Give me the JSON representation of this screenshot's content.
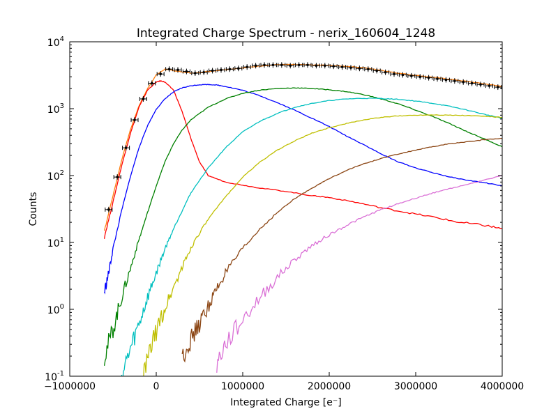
{
  "chart_data": {
    "type": "line",
    "title": "Integrated Charge Spectrum - nerix_160604_1248",
    "xlabel": "Integrated Charge [e⁻]",
    "ylabel": "Counts",
    "xlim": [
      -1000000,
      4000000
    ],
    "ylim": [
      0.1,
      10000
    ],
    "yscale": "log",
    "grid": false,
    "x_ticks": [
      {
        "value": -1000000,
        "label": "−1000000"
      },
      {
        "value": 0,
        "label": "0"
      },
      {
        "value": 1000000,
        "label": "1000000"
      },
      {
        "value": 2000000,
        "label": "2000000"
      },
      {
        "value": 3000000,
        "label": "3000000"
      },
      {
        "value": 4000000,
        "label": "4000000"
      }
    ],
    "y_ticks": [
      {
        "value": 0.1,
        "base": "10",
        "exp": "-1"
      },
      {
        "value": 1,
        "base": "10",
        "exp": "0"
      },
      {
        "value": 10,
        "base": "10",
        "exp": "1"
      },
      {
        "value": 100,
        "base": "10",
        "exp": "2"
      },
      {
        "value": 1000,
        "base": "10",
        "exp": "3"
      },
      {
        "value": 10000,
        "base": "10",
        "exp": "4"
      }
    ],
    "data_points": {
      "color": "#000000",
      "x": [
        -550000,
        -450000,
        -350000,
        -250000,
        -150000,
        -50000,
        50000,
        150000,
        250000,
        350000,
        450000,
        550000,
        650000,
        750000,
        850000,
        950000,
        1050000,
        1150000,
        1250000,
        1350000,
        1450000,
        1550000,
        1650000,
        1750000,
        1850000,
        1950000,
        2050000,
        2150000,
        2250000,
        2350000,
        2450000,
        2550000,
        2650000,
        2750000,
        2850000,
        2950000,
        3050000,
        3150000,
        3250000,
        3350000,
        3450000,
        3550000,
        3650000,
        3750000,
        3850000,
        3950000
      ],
      "y": [
        31,
        95,
        260,
        680,
        1400,
        2400,
        3300,
        3900,
        3800,
        3600,
        3400,
        3500,
        3700,
        3800,
        3900,
        4000,
        4200,
        4400,
        4500,
        4500,
        4500,
        4400,
        4500,
        4500,
        4400,
        4400,
        4300,
        4200,
        4100,
        4000,
        3900,
        3700,
        3500,
        3300,
        3200,
        3100,
        3000,
        2900,
        2800,
        2700,
        2600,
        2500,
        2400,
        2300,
        2200,
        2100
      ]
    },
    "series": [
      {
        "color": "#ff7f0e",
        "x": [
          -600000,
          -500000,
          -400000,
          -300000,
          -200000,
          -100000,
          0,
          100000,
          200000,
          300000,
          400000,
          500000,
          600000,
          800000,
          1000000,
          1200000,
          1400000,
          1600000,
          1800000,
          2000000,
          2200000,
          2400000,
          2600000,
          2800000,
          3000000,
          3200000,
          3400000,
          3600000,
          3800000,
          4000000
        ],
        "y": [
          15,
          50,
          170,
          480,
          1100,
          2000,
          3200,
          3900,
          3700,
          3550,
          3400,
          3450,
          3600,
          3850,
          4050,
          4350,
          4550,
          4550,
          4500,
          4450,
          4300,
          4100,
          3750,
          3400,
          3150,
          2950,
          2750,
          2550,
          2350,
          2150
        ]
      },
      {
        "color": "#ff0000",
        "x": [
          -600000,
          -500000,
          -400000,
          -300000,
          -200000,
          -100000,
          0,
          50000,
          100000,
          200000,
          300000,
          400000,
          500000,
          600000,
          800000,
          1000000,
          1200000,
          1500000,
          1800000,
          2000000,
          2300000,
          2600000,
          2900000,
          3200000,
          3500000,
          3800000,
          4000000
        ],
        "y": [
          12,
          40,
          140,
          420,
          1050,
          1900,
          2500,
          2600,
          2500,
          1900,
          900,
          360,
          160,
          100,
          80,
          72,
          65,
          58,
          50,
          47,
          40,
          33,
          28,
          24,
          20,
          18,
          16
        ]
      },
      {
        "color": "#0000ff",
        "x": [
          -600000,
          -550000,
          -500000,
          -400000,
          -300000,
          -200000,
          -100000,
          0,
          100000,
          200000,
          300000,
          400000,
          500000,
          600000,
          700000,
          800000,
          1000000,
          1200000,
          1400000,
          1600000,
          1800000,
          2000000,
          2200000,
          2400000,
          2600000,
          2800000,
          3000000,
          3200000,
          3400000,
          3600000,
          3800000,
          4000000
        ],
        "y": [
          1.8,
          3.5,
          8,
          30,
          95,
          260,
          560,
          980,
          1400,
          1780,
          2050,
          2200,
          2280,
          2300,
          2260,
          2150,
          1880,
          1560,
          1230,
          950,
          720,
          540,
          390,
          290,
          210,
          160,
          130,
          110,
          95,
          85,
          78,
          70
        ]
      },
      {
        "color": "#008000",
        "x": [
          -600000,
          -500000,
          -400000,
          -300000,
          -200000,
          -100000,
          0,
          100000,
          200000,
          300000,
          400000,
          600000,
          800000,
          1000000,
          1200000,
          1400000,
          1600000,
          1800000,
          2000000,
          2200000,
          2400000,
          2600000,
          2800000,
          3000000,
          3200000,
          3400000,
          3600000,
          3800000,
          4000000
        ],
        "y": [
          0.2,
          0.5,
          1.5,
          4,
          11,
          28,
          70,
          160,
          300,
          480,
          680,
          1050,
          1400,
          1700,
          1900,
          2000,
          2050,
          2000,
          1920,
          1800,
          1620,
          1400,
          1180,
          950,
          760,
          590,
          450,
          350,
          270
        ]
      },
      {
        "color": "#00bfbf",
        "x": [
          -400000,
          -300000,
          -200000,
          -100000,
          0,
          100000,
          200000,
          300000,
          400000,
          600000,
          800000,
          1000000,
          1200000,
          1400000,
          1600000,
          1800000,
          2000000,
          2200000,
          2400000,
          2600000,
          2800000,
          3000000,
          3200000,
          3400000,
          3600000,
          3800000,
          4000000
        ],
        "y": [
          0.1,
          0.25,
          0.6,
          1.5,
          3.5,
          8,
          16,
          30,
          55,
          130,
          260,
          450,
          650,
          850,
          1050,
          1200,
          1320,
          1400,
          1430,
          1420,
          1380,
          1300,
          1200,
          1080,
          950,
          820,
          720
        ]
      },
      {
        "color": "#bfbf00",
        "x": [
          -150000,
          -50000,
          50000,
          150000,
          250000,
          350000,
          450000,
          600000,
          800000,
          1000000,
          1200000,
          1400000,
          1600000,
          1800000,
          2000000,
          2200000,
          2400000,
          2600000,
          2800000,
          3000000,
          3200000,
          3400000,
          3600000,
          3800000,
          4000000
        ],
        "y": [
          0.1,
          0.3,
          0.7,
          1.5,
          3,
          6,
          11,
          22,
          48,
          95,
          160,
          240,
          330,
          430,
          520,
          600,
          680,
          740,
          780,
          800,
          810,
          800,
          790,
          770,
          740
        ]
      },
      {
        "color": "#8b4513",
        "x": [
          300000,
          400000,
          500000,
          600000,
          700000,
          800000,
          1000000,
          1200000,
          1400000,
          1600000,
          1800000,
          2000000,
          2200000,
          2400000,
          2600000,
          2800000,
          3000000,
          3200000,
          3400000,
          3600000,
          3800000,
          4000000
        ],
        "y": [
          0.2,
          0.35,
          0.6,
          1.1,
          2,
          3.5,
          8,
          16,
          28,
          45,
          65,
          90,
          120,
          150,
          180,
          210,
          240,
          270,
          300,
          320,
          345,
          360
        ]
      },
      {
        "color": "#da70d6",
        "x": [
          700000,
          800000,
          1000000,
          1200000,
          1400000,
          1600000,
          1800000,
          2000000,
          2200000,
          2400000,
          2600000,
          2800000,
          3000000,
          3200000,
          3400000,
          3600000,
          3800000,
          4000000
        ],
        "y": [
          0.15,
          0.3,
          0.7,
          1.5,
          3,
          5.5,
          9,
          13,
          18,
          24,
          31,
          38,
          46,
          55,
          64,
          74,
          86,
          100
        ]
      }
    ]
  }
}
